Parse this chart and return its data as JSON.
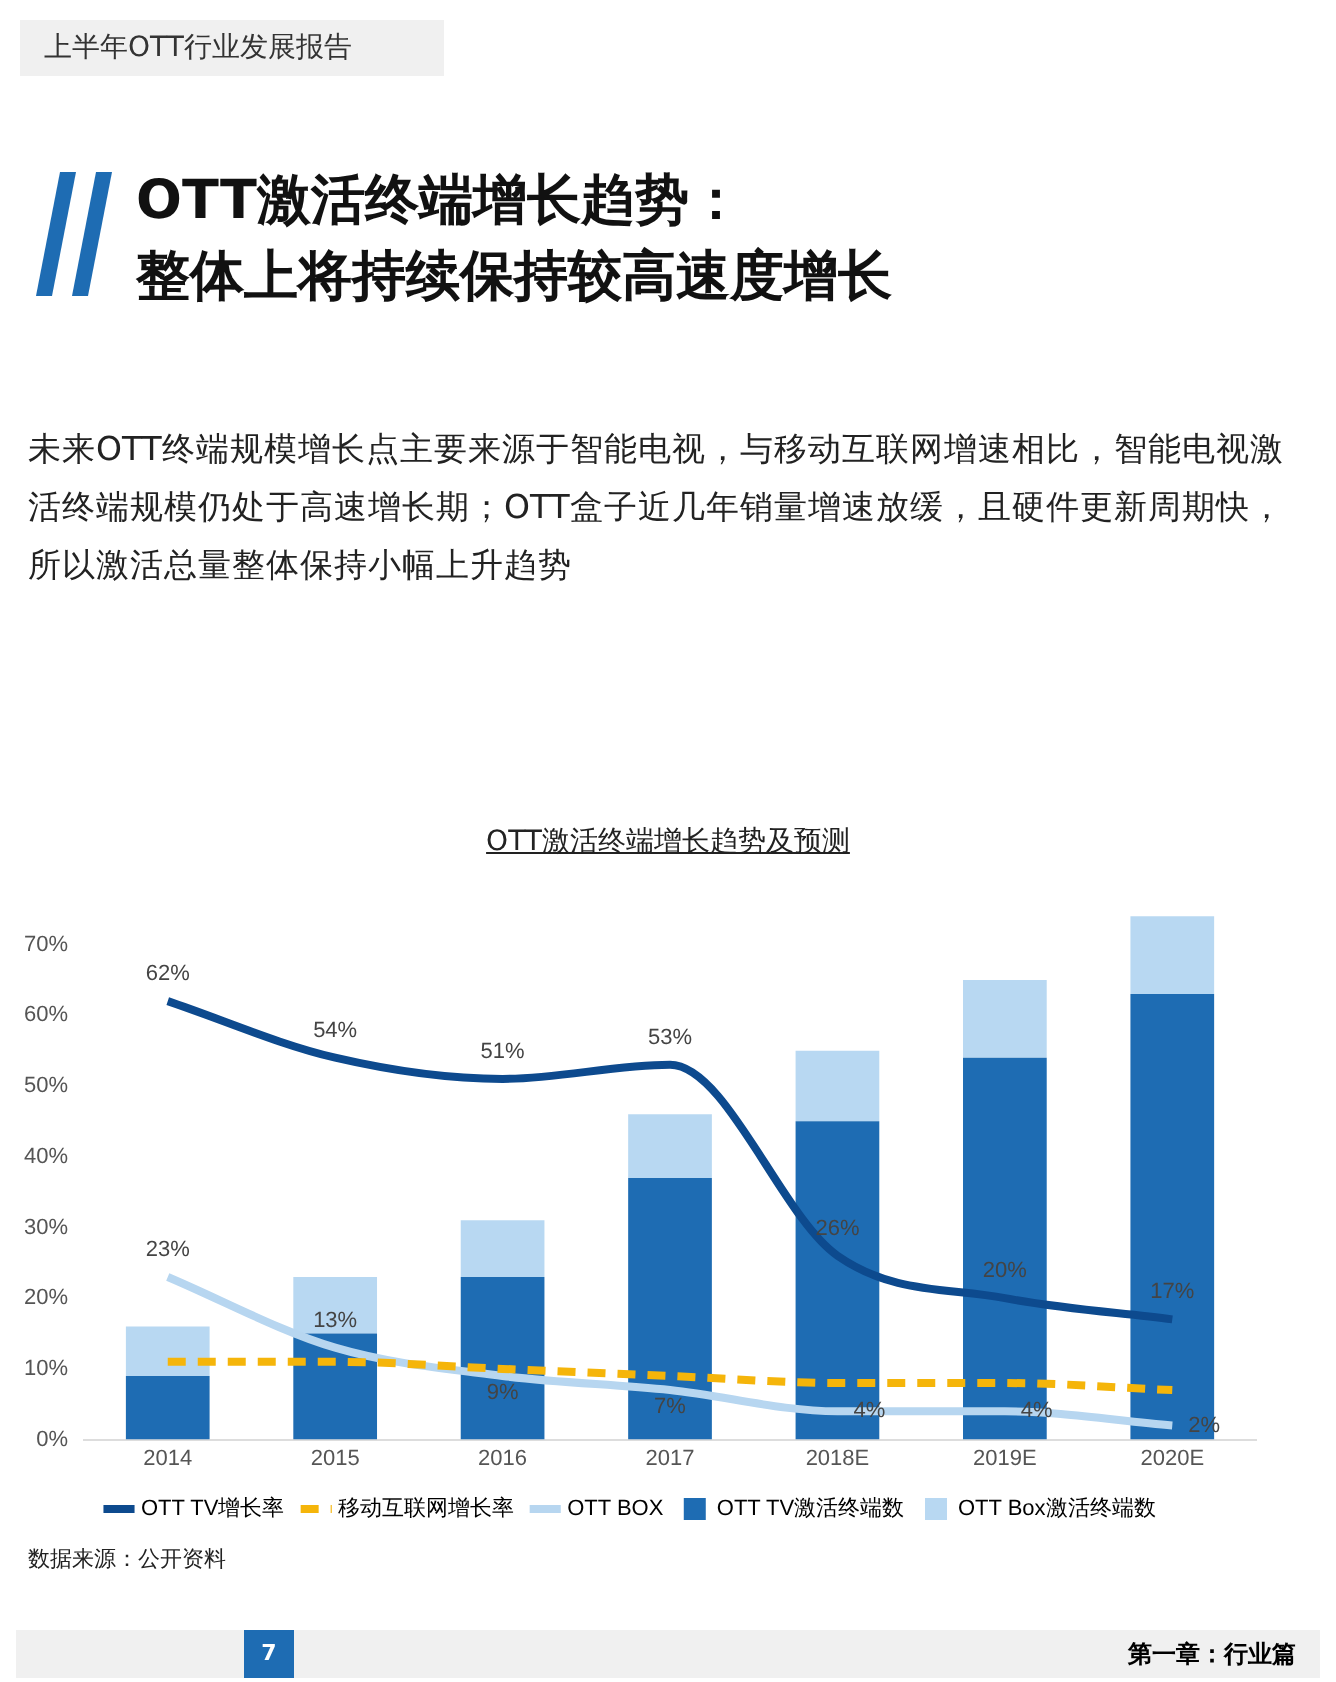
{
  "chart_data": {
    "type": "bar",
    "title": "OTT激活终端增长趋势及预测",
    "annotations": [
      "上半年OTT行业发展报告",
      "OTT激活终端增长趋势：",
      "整体上将持续保持较高速度增长",
      "未来OTT终端规模增长点主要来源于智能电视，与移动互联网增速相比，智能电视激活终端规模仍处于高速增长期；OTT盒子近几年销量增速放缓，且硬件更新周期快，所以激活总量整体保持小幅上升趋势",
      "数据来源：公开资料",
      "7",
      "第一章：行业篇"
    ],
    "categories": [
      "2014",
      "2015",
      "2016",
      "2017",
      "2018E",
      "2019E",
      "2020E"
    ],
    "stacked": true,
    "ylim": [
      0,
      75
    ],
    "yticks": [
      {
        "value": 0,
        "label": "0%"
      },
      {
        "value": 10,
        "label": "10%"
      },
      {
        "value": 20,
        "label": "20%"
      },
      {
        "value": 30,
        "label": "30%"
      },
      {
        "value": 40,
        "label": "40%"
      },
      {
        "value": 50,
        "label": "50%"
      },
      {
        "value": 60,
        "label": "60%"
      },
      {
        "value": 70,
        "label": "70%"
      }
    ],
    "grid": false,
    "legend": "bottom",
    "marker": "none",
    "series": [
      {
        "name": "OTT TV增长率",
        "type": "line",
        "color": "#0d4a8e",
        "values": [
          62,
          54,
          51,
          53,
          26,
          20,
          17
        ],
        "value_labels": [
          "62%",
          "54%",
          "51%",
          "53%",
          "26%",
          "20%",
          "17%"
        ]
      },
      {
        "name": "移动互联网增长率",
        "type": "line",
        "line_style": "dashed",
        "color": "#f5b50a",
        "values": [
          11,
          11,
          10,
          9,
          8,
          8,
          7
        ]
      },
      {
        "name": "OTT BOX",
        "type": "line",
        "color": "#b7d6f0",
        "values": [
          23,
          13,
          9,
          7,
          4,
          4,
          2
        ],
        "value_labels": [
          "23%",
          "13%",
          "9%",
          "7%",
          "4%",
          "4%",
          "2%"
        ]
      },
      {
        "name": "OTT TV激活终端数",
        "type": "bar",
        "color": "#1e6cb3",
        "values": [
          9,
          15,
          23,
          37,
          45,
          54,
          63
        ]
      },
      {
        "name": "OTT Box激活终端数",
        "type": "bar",
        "color": "#b8d8f2",
        "values": [
          7,
          8,
          8,
          9,
          10,
          11,
          11
        ]
      }
    ]
  }
}
